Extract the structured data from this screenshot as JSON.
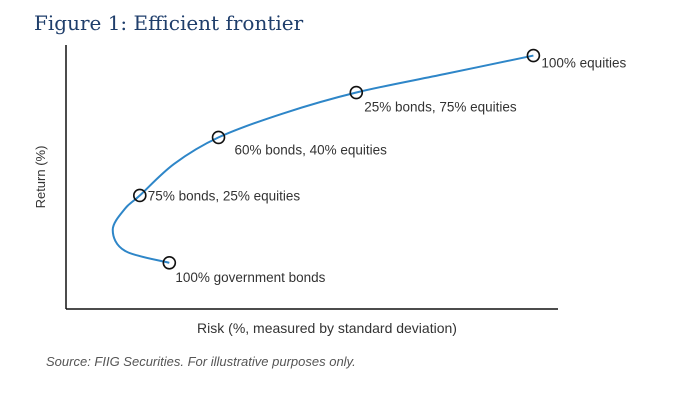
{
  "chart_data": {
    "type": "line",
    "title": "Figure 1: Efficient frontier",
    "xlabel": "Risk (%, measured by standard deviation)",
    "ylabel": "Return (%)",
    "source": "Source: FIIG Securities. For illustrative purposes only.",
    "x_ticks": [],
    "y_ticks": [],
    "grid": false,
    "colors": {
      "title": "#1f3e6b",
      "line": "#2e86c8",
      "axis": "#111111",
      "label": "#333333",
      "source": "#555555"
    },
    "points": [
      {
        "label": "100% government bonds",
        "risk": 2.1,
        "return": 1.75
      },
      {
        "label": "75% bonds, 25% equities",
        "risk": 1.5,
        "return": 4.3
      },
      {
        "label": "60% bonds, 40% equities",
        "risk": 3.1,
        "return": 6.5
      },
      {
        "label": "25% bonds, 75% equities",
        "risk": 5.9,
        "return": 8.2
      },
      {
        "label": "100% equities",
        "risk": 9.5,
        "return": 9.6
      }
    ],
    "curve": {
      "x": [
        2.1,
        1.2,
        0.95,
        1.2,
        1.5,
        2.2,
        3.1,
        4.4,
        5.9,
        7.7,
        9.5
      ],
      "y": [
        1.75,
        2.2,
        3.0,
        3.8,
        4.3,
        5.5,
        6.5,
        7.4,
        8.2,
        8.9,
        9.6
      ]
    }
  }
}
